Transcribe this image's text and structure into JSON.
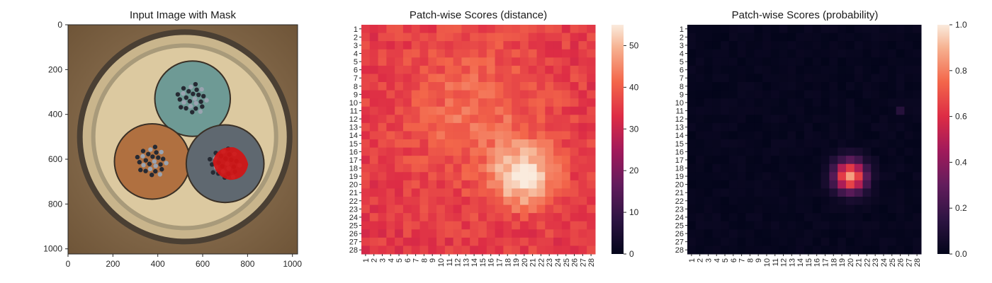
{
  "chart_data": [
    {
      "type": "image",
      "title": "Input Image with Mask",
      "xlim": [
        0,
        1023
      ],
      "ylim": [
        1023,
        0
      ],
      "xticks": [
        0,
        200,
        400,
        600,
        800,
        1000
      ],
      "yticks": [
        0,
        200,
        400,
        600,
        800,
        1000
      ],
      "mask_color": "#d41414",
      "objects": [
        {
          "kind": "dish-outer",
          "cx": 520,
          "cy": 500,
          "r": 480
        },
        {
          "kind": "cable-teal",
          "cx": 555,
          "cy": 330,
          "r": 165,
          "color": "#6e9a95"
        },
        {
          "kind": "cable-orange",
          "cx": 375,
          "cy": 610,
          "r": 165,
          "color": "#b07040"
        },
        {
          "kind": "cable-grey",
          "cx": 700,
          "cy": 620,
          "r": 170,
          "color": "#5f6870"
        },
        {
          "kind": "defect-mask",
          "cx": 720,
          "cy": 610,
          "r": 75
        }
      ]
    },
    {
      "type": "heatmap",
      "title": "Patch-wise Scores (distance)",
      "rows": 28,
      "cols": 28,
      "vmin": 0,
      "vmax": 55,
      "colorbar_ticks": [
        0,
        10,
        20,
        30,
        40,
        50
      ],
      "colormap": "rocket",
      "base_value": 35,
      "hotspot": {
        "row": 19,
        "col": 20,
        "peak": 55,
        "sigma": 2.6
      },
      "halo": {
        "row": 11,
        "col": 14,
        "peak": 7,
        "sigma": 6
      }
    },
    {
      "type": "heatmap",
      "title": "Patch-wise Scores (probability)",
      "rows": 28,
      "cols": 28,
      "vmin": 0.0,
      "vmax": 1.0,
      "colorbar_ticks": [
        "0.0",
        "0.2",
        "0.4",
        "0.6",
        "0.8",
        "1.0"
      ],
      "colormap": "rocket",
      "hotspot": {
        "row": 19,
        "col": 20,
        "peak": 0.85,
        "sigma": 1.3
      }
    }
  ]
}
